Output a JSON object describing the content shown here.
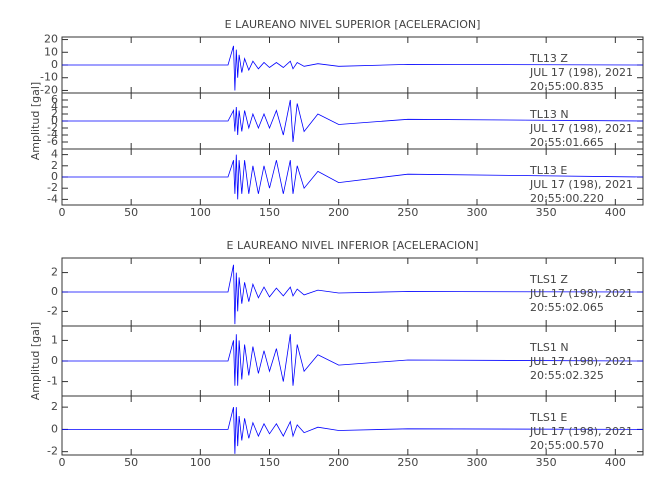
{
  "chart_data": [
    {
      "type": "line",
      "title": "E LAUREANO NIVEL SUPERIOR [ACELERACION]",
      "station": "TL13   Z",
      "date": "JUL 17 (198), 2021",
      "time": "20:55:00.835",
      "color": "#0000ff",
      "xlim": [
        0,
        420
      ],
      "xticks": [
        0,
        50,
        100,
        150,
        200,
        250,
        300,
        350,
        400
      ],
      "ylim": [
        -22,
        22
      ],
      "yticks": [
        -20,
        -10,
        0,
        10,
        20
      ],
      "x": [
        0,
        120,
        124,
        125,
        126,
        127,
        128,
        130,
        132,
        135,
        138,
        142,
        146,
        150,
        155,
        160,
        165,
        167,
        170,
        175,
        185,
        200,
        250,
        420
      ],
      "values": [
        0,
        0,
        15,
        -20,
        12,
        -10,
        8,
        -6,
        5,
        -4,
        3,
        -3,
        2,
        -2,
        2,
        -2,
        3,
        -3,
        2,
        -1,
        1,
        -1,
        0.5,
        0
      ]
    },
    {
      "type": "line",
      "ylabel": "Amplitud [gal]",
      "station": "TL13   N",
      "date": "JUL 17 (198), 2021",
      "time": "20:55:01.665",
      "color": "#0000ff",
      "xlim": [
        0,
        420
      ],
      "xticks": [
        0,
        50,
        100,
        150,
        200,
        250,
        300,
        350,
        400
      ],
      "ylim": [
        -8,
        8
      ],
      "yticks": [
        -6,
        -4,
        -2,
        0,
        2,
        4,
        6
      ],
      "x": [
        0,
        120,
        124,
        125,
        126,
        127,
        128,
        130,
        132,
        135,
        138,
        142,
        146,
        150,
        155,
        160,
        165,
        167,
        170,
        175,
        185,
        200,
        250,
        420
      ],
      "values": [
        0,
        0,
        3,
        -3,
        4,
        -4,
        3,
        -3,
        3,
        -2,
        2,
        -2,
        2,
        -2,
        3,
        -4,
        6,
        -6,
        5,
        -3,
        2,
        -1,
        0.5,
        0
      ]
    },
    {
      "type": "line",
      "station": "TL13   E",
      "date": "JUL 17 (198), 2021",
      "time": "20:55:00.220",
      "color": "#0000ff",
      "show_xtick_labels": true,
      "xlim": [
        0,
        420
      ],
      "xticks": [
        0,
        50,
        100,
        150,
        200,
        250,
        300,
        350,
        400
      ],
      "ylim": [
        -5,
        5
      ],
      "yticks": [
        -4,
        -2,
        0,
        2,
        4
      ],
      "x": [
        0,
        120,
        124,
        125,
        126,
        127,
        128,
        130,
        132,
        135,
        138,
        142,
        146,
        150,
        155,
        160,
        165,
        167,
        170,
        175,
        185,
        200,
        250,
        420
      ],
      "values": [
        0,
        0,
        3,
        -3,
        4,
        -4,
        3,
        -3,
        3,
        -3,
        2,
        -3,
        2,
        -2,
        3,
        -3,
        3,
        -3,
        2,
        -2,
        1,
        -1,
        0.5,
        0
      ]
    },
    {
      "type": "line",
      "title": "E LAUREANO NIVEL INFERIOR [ACELERACION]",
      "station": "TLS1   Z",
      "date": "JUL 17 (198), 2021",
      "time": "20:55:02.065",
      "color": "#0000ff",
      "xlim": [
        0,
        420
      ],
      "xticks": [
        0,
        50,
        100,
        150,
        200,
        250,
        300,
        350,
        400
      ],
      "ylim": [
        -3.5,
        3.5
      ],
      "yticks": [
        -2,
        0,
        2
      ],
      "x": [
        0,
        120,
        124,
        125,
        126,
        127,
        128,
        130,
        132,
        135,
        138,
        142,
        146,
        150,
        155,
        160,
        165,
        167,
        170,
        175,
        185,
        200,
        250,
        420
      ],
      "values": [
        0,
        0,
        2.8,
        -3.3,
        2,
        -2,
        1.5,
        -1.2,
        1,
        -1,
        0.8,
        -0.6,
        0.5,
        -0.5,
        0.4,
        -0.4,
        0.5,
        -0.4,
        0.3,
        -0.3,
        0.2,
        -0.1,
        0.05,
        0
      ]
    },
    {
      "type": "line",
      "ylabel": "Amplitud [gal]",
      "station": "TLS1   N",
      "date": "JUL 17 (198), 2021",
      "time": "20:55:02.325",
      "color": "#0000ff",
      "xlim": [
        0,
        420
      ],
      "xticks": [
        0,
        50,
        100,
        150,
        200,
        250,
        300,
        350,
        400
      ],
      "ylim": [
        -1.7,
        1.7
      ],
      "yticks": [
        -1,
        0,
        1
      ],
      "x": [
        0,
        120,
        124,
        125,
        126,
        127,
        128,
        130,
        132,
        135,
        138,
        142,
        146,
        150,
        155,
        160,
        165,
        167,
        170,
        175,
        185,
        200,
        250,
        420
      ],
      "values": [
        0,
        0,
        1,
        -1.2,
        1.3,
        -1.2,
        1,
        -0.9,
        0.8,
        -0.7,
        0.7,
        -0.6,
        0.5,
        -0.5,
        0.6,
        -1,
        1.3,
        -1.2,
        0.8,
        -0.5,
        0.3,
        -0.2,
        0.05,
        0
      ]
    },
    {
      "type": "line",
      "station": "TLS1   E",
      "date": "JUL 17 (198), 2021",
      "time": "20:55:00.570",
      "color": "#0000ff",
      "show_xtick_labels": true,
      "xlim": [
        0,
        420
      ],
      "xticks": [
        0,
        50,
        100,
        150,
        200,
        250,
        300,
        350,
        400
      ],
      "ylim": [
        -2.3,
        3
      ],
      "yticks": [
        -2,
        0,
        2
      ],
      "x": [
        0,
        120,
        124,
        125,
        126,
        127,
        128,
        130,
        132,
        135,
        138,
        142,
        146,
        150,
        155,
        160,
        165,
        167,
        170,
        175,
        185,
        200,
        250,
        420
      ],
      "values": [
        0,
        0,
        2,
        -2.2,
        2,
        -1.5,
        1.2,
        -1,
        1,
        -0.8,
        0.6,
        -0.6,
        0.5,
        -0.4,
        0.5,
        -0.6,
        0.7,
        -0.6,
        0.4,
        -0.3,
        0.2,
        -0.1,
        0.05,
        0
      ]
    }
  ]
}
